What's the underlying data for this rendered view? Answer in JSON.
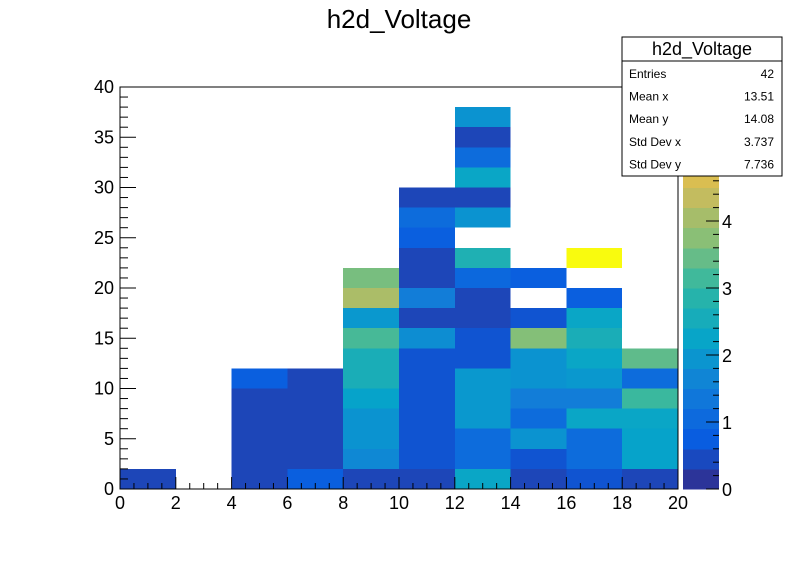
{
  "chart_data": {
    "type": "heatmap",
    "title": "h2d_Voltage",
    "xlabel": "",
    "ylabel": "",
    "x_edges": [
      0,
      2,
      4,
      6,
      8,
      10,
      12,
      14,
      16,
      18,
      20
    ],
    "y_edges": [
      0,
      2,
      4,
      6,
      8,
      10,
      12,
      14,
      16,
      18,
      20,
      22,
      24,
      26,
      28,
      30,
      32,
      34,
      36,
      38
    ],
    "xlim": [
      0,
      20
    ],
    "ylim": [
      0,
      40
    ],
    "zlim": [
      0,
      6
    ],
    "x_ticks": [
      "0",
      "2",
      "4",
      "6",
      "8",
      "10",
      "12",
      "14",
      "16",
      "18",
      "20"
    ],
    "y_ticks": [
      "0",
      "5",
      "10",
      "15",
      "20",
      "25",
      "30",
      "35",
      "40"
    ],
    "z_ticks": [
      "0",
      "1",
      "2",
      "3",
      "4",
      "5"
    ],
    "cells": [
      [
        0,
        0,
        0.4
      ],
      [
        2,
        0,
        0.4
      ],
      [
        2,
        1,
        0.4
      ],
      [
        2,
        2,
        0.4
      ],
      [
        2,
        3,
        0.4
      ],
      [
        2,
        4,
        0.4
      ],
      [
        2,
        5,
        0.8
      ],
      [
        3,
        0,
        0.8
      ],
      [
        3,
        1,
        0.4
      ],
      [
        3,
        2,
        0.4
      ],
      [
        3,
        3,
        0.4
      ],
      [
        3,
        4,
        0.4
      ],
      [
        3,
        5,
        0.4
      ],
      [
        4,
        0,
        0.4
      ],
      [
        4,
        1,
        1.7
      ],
      [
        4,
        2,
        1.9
      ],
      [
        4,
        3,
        1.9
      ],
      [
        4,
        4,
        2.2
      ],
      [
        4,
        5,
        2.6
      ],
      [
        4,
        6,
        2.6
      ],
      [
        4,
        7,
        3.2
      ],
      [
        4,
        8,
        2.0
      ],
      [
        4,
        9,
        4.1
      ],
      [
        4,
        10,
        3.6
      ],
      [
        5,
        0,
        0.4
      ],
      [
        5,
        1,
        0.6
      ],
      [
        5,
        2,
        0.6
      ],
      [
        5,
        3,
        0.6
      ],
      [
        5,
        4,
        0.6
      ],
      [
        5,
        5,
        0.6
      ],
      [
        5,
        6,
        0.6
      ],
      [
        5,
        7,
        1.8
      ],
      [
        5,
        8,
        0.4
      ],
      [
        5,
        9,
        1.5
      ],
      [
        5,
        10,
        0.4
      ],
      [
        5,
        11,
        0.4
      ],
      [
        5,
        12,
        0.8
      ],
      [
        5,
        13,
        1.1
      ],
      [
        5,
        14,
        0.4
      ],
      [
        6,
        0,
        2.3
      ],
      [
        6,
        1,
        1.1
      ],
      [
        6,
        2,
        1.1
      ],
      [
        6,
        3,
        2.0
      ],
      [
        6,
        4,
        2.0
      ],
      [
        6,
        5,
        2.0
      ],
      [
        6,
        6,
        0.6
      ],
      [
        6,
        7,
        0.6
      ],
      [
        6,
        8,
        0.4
      ],
      [
        6,
        9,
        0.4
      ],
      [
        6,
        10,
        1.0
      ],
      [
        6,
        11,
        2.7
      ],
      [
        6,
        13,
        1.9
      ],
      [
        6,
        14,
        0.4
      ],
      [
        6,
        15,
        2.3
      ],
      [
        6,
        16,
        1.1
      ],
      [
        6,
        17,
        0.4
      ],
      [
        6,
        18,
        1.9
      ],
      [
        7,
        0,
        0.4
      ],
      [
        7,
        1,
        0.6
      ],
      [
        7,
        2,
        1.9
      ],
      [
        7,
        3,
        1.1
      ],
      [
        7,
        4,
        1.5
      ],
      [
        7,
        5,
        1.9
      ],
      [
        7,
        6,
        1.9
      ],
      [
        7,
        7,
        3.7
      ],
      [
        7,
        8,
        0.6
      ],
      [
        7,
        10,
        0.8
      ],
      [
        8,
        0,
        0.6
      ],
      [
        8,
        1,
        1.1
      ],
      [
        8,
        2,
        1.1
      ],
      [
        8,
        3,
        2.3
      ],
      [
        8,
        4,
        1.5
      ],
      [
        8,
        5,
        2.0
      ],
      [
        8,
        6,
        2.3
      ],
      [
        8,
        7,
        2.6
      ],
      [
        8,
        8,
        2.3
      ],
      [
        8,
        9,
        0.8
      ],
      [
        8,
        11,
        6.0
      ],
      [
        9,
        0,
        0.4
      ],
      [
        9,
        1,
        2.2
      ],
      [
        9,
        2,
        2.2
      ],
      [
        9,
        3,
        2.3
      ],
      [
        9,
        4,
        3.1
      ],
      [
        9,
        5,
        1.1
      ],
      [
        9,
        6,
        3.4
      ]
    ]
  },
  "stats_box": {
    "title": "h2d_Voltage",
    "rows": [
      {
        "label": "Entries",
        "value": "42"
      },
      {
        "label": "Mean x",
        "value": "13.51"
      },
      {
        "label": "Mean y",
        "value": "14.08"
      },
      {
        "label": "Std Dev x",
        "value": "3.737"
      },
      {
        "label": "Std Dev y",
        "value": "7.736"
      }
    ]
  }
}
